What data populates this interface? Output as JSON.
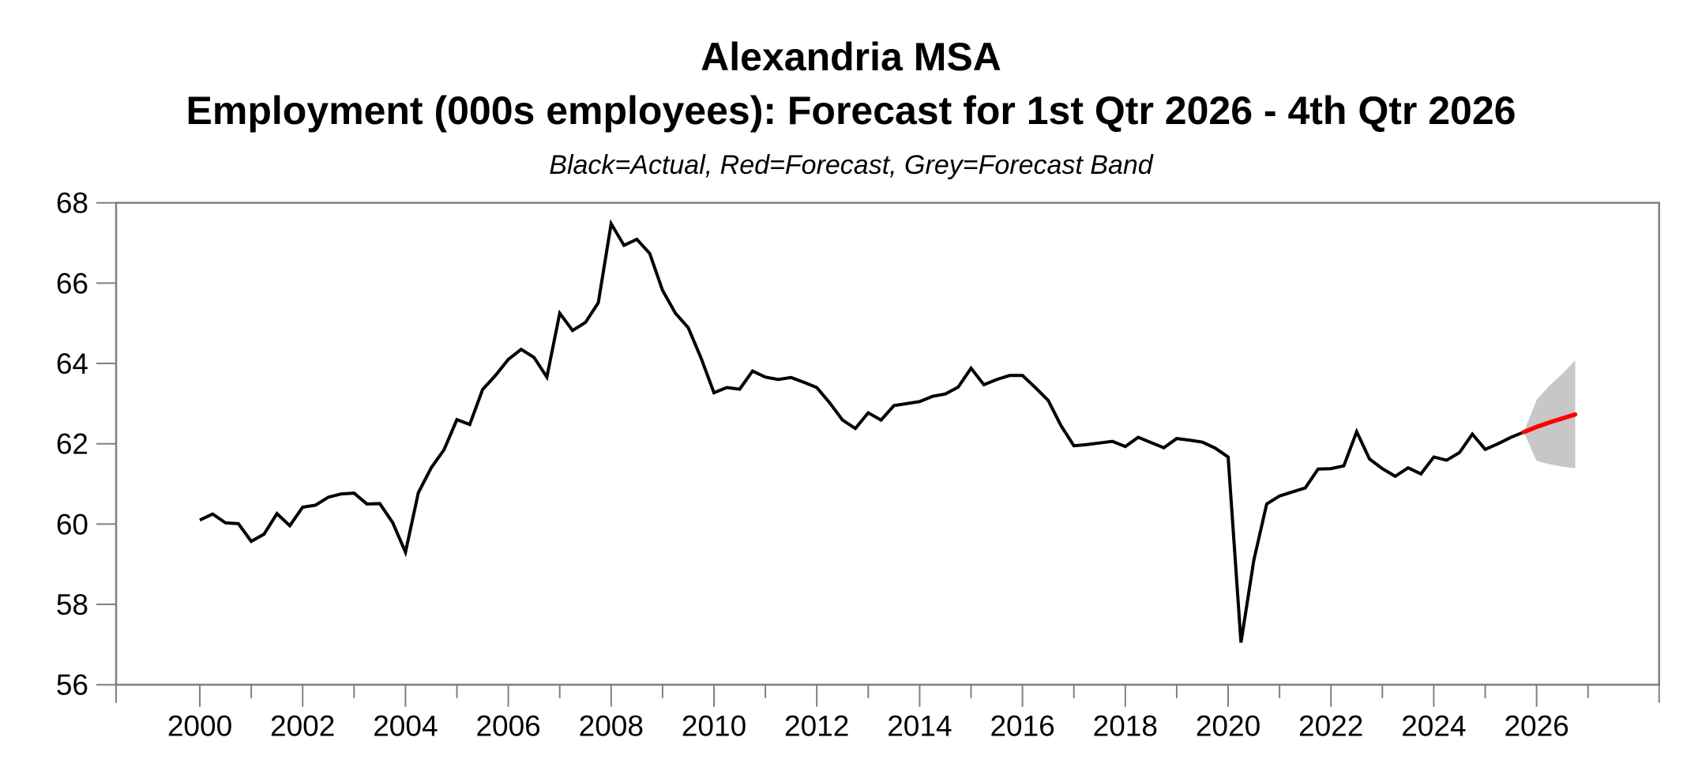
{
  "header": {
    "title_line1": "Alexandria MSA",
    "title_line2": "Employment (000s employees): Forecast for 1st Qtr 2026 - 4th Qtr 2026",
    "subtitle": "Black=Actual, Red=Forecast, Grey=Forecast Band"
  },
  "chart_data": {
    "type": "line",
    "title": "Alexandria MSA",
    "subtitle": "Employment (000s employees): Forecast for 1st Qtr 2026 - 4th Qtr 2026",
    "legend_note": "Black=Actual, Red=Forecast, Grey=Forecast Band",
    "xlabel": "",
    "ylabel": "",
    "grid": false,
    "frequency": "quarterly",
    "axis_color": "#808080",
    "y_axis": {
      "ticks": [
        56,
        58,
        60,
        62,
        64,
        66,
        68
      ],
      "range": [
        56,
        68
      ]
    },
    "x_axis": {
      "major_ticks": [
        2000,
        2002,
        2004,
        2006,
        2008,
        2010,
        2012,
        2014,
        2016,
        2018,
        2020,
        2022,
        2024,
        2026
      ],
      "minor_ticks": [
        2001,
        2003,
        2005,
        2007,
        2009,
        2011,
        2013,
        2015,
        2017,
        2019,
        2021,
        2023,
        2025,
        2027
      ],
      "range": [
        1998.4,
        2028.4
      ]
    },
    "series": {
      "actual": {
        "name": "Actual",
        "color": "#000000",
        "start_year": 2000,
        "start_quarter": 1,
        "values": [
          60.1,
          60.25,
          60.03,
          60.01,
          59.57,
          59.75,
          60.26,
          59.96,
          60.42,
          60.47,
          60.67,
          60.75,
          60.77,
          60.5,
          60.51,
          60.04,
          59.3,
          60.78,
          61.4,
          61.85,
          62.6,
          62.48,
          63.35,
          63.7,
          64.1,
          64.35,
          64.15,
          63.66,
          65.25,
          64.82,
          65.02,
          65.51,
          67.48,
          66.94,
          67.09,
          66.74,
          65.82,
          65.25,
          64.89,
          64.13,
          63.27,
          63.4,
          63.36,
          63.81,
          63.66,
          63.6,
          63.65,
          63.53,
          63.4,
          63.02,
          62.59,
          62.38,
          62.77,
          62.59,
          62.95,
          63.0,
          63.05,
          63.18,
          63.24,
          63.41,
          63.88,
          63.47,
          63.6,
          63.7,
          63.7,
          63.4,
          63.08,
          62.45,
          61.95,
          61.98,
          62.02,
          62.06,
          61.93,
          62.16,
          62.03,
          61.9,
          62.13,
          62.09,
          62.04,
          61.89,
          61.67,
          57.05,
          59.1,
          60.5,
          60.7,
          60.8,
          60.9,
          61.37,
          61.38,
          61.45,
          62.3,
          61.62,
          61.38,
          61.19,
          61.4,
          61.25,
          61.67,
          61.59,
          61.78,
          62.24,
          61.86,
          62.0,
          62.16,
          62.29
        ]
      },
      "forecast": {
        "name": "Forecast",
        "color": "#ff0000",
        "start_year": 2025,
        "start_quarter": 4,
        "values": [
          62.29,
          62.42,
          62.53,
          62.63,
          62.73
        ]
      },
      "band_upper": {
        "name": "Forecast Band Upper",
        "start_year": 2025,
        "start_quarter": 4,
        "values": [
          62.29,
          63.09,
          63.45,
          63.74,
          64.08
        ]
      },
      "band_lower": {
        "name": "Forecast Band Lower",
        "start_year": 2025,
        "start_quarter": 4,
        "values": [
          62.29,
          61.57,
          61.49,
          61.43,
          61.39
        ]
      },
      "band_color": "#c7c7c7"
    }
  }
}
